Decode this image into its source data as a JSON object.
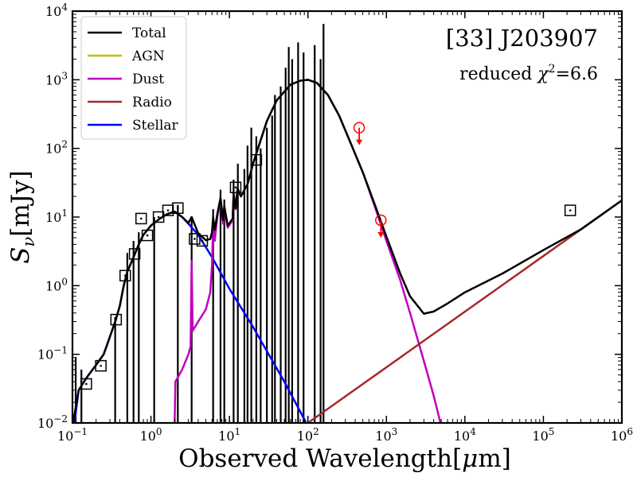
{
  "chart_data": {
    "type": "line",
    "x_scale": "log",
    "y_scale": "log",
    "xlim": [
      0.1,
      1000000
    ],
    "ylim": [
      0.01,
      10000
    ],
    "title": "[33] J203907",
    "annotation": "reduced χ²=6.6",
    "annotation_parts": {
      "prefix": "reduced ",
      "chi": "χ",
      "sup": "2",
      "suffix": "=6.6"
    },
    "xlabel": "Observed Wavelength[μm]",
    "xlabel_parts": {
      "main": "Observed Wavelength[",
      "mu": "μ",
      "unit": "m]"
    },
    "ylabel": "Sν[mJy]",
    "ylabel_parts": {
      "s": "S",
      "nu": "ν",
      "unit": "[mJy]"
    },
    "x_ticks": [
      {
        "value": 0.1,
        "base": "10",
        "exp": "−1"
      },
      {
        "value": 1,
        "base": "10",
        "exp": "0"
      },
      {
        "value": 10,
        "base": "10",
        "exp": "1"
      },
      {
        "value": 100,
        "base": "10",
        "exp": "2"
      },
      {
        "value": 1000,
        "base": "10",
        "exp": "3"
      },
      {
        "value": 10000,
        "base": "10",
        "exp": "4"
      },
      {
        "value": 100000,
        "base": "10",
        "exp": "5"
      },
      {
        "value": 1000000,
        "base": "10",
        "exp": "6"
      }
    ],
    "y_ticks": [
      {
        "value": 0.01,
        "base": "10",
        "exp": "−2"
      },
      {
        "value": 0.1,
        "base": "10",
        "exp": "−1"
      },
      {
        "value": 1,
        "base": "10",
        "exp": "0"
      },
      {
        "value": 10,
        "base": "10",
        "exp": "1"
      },
      {
        "value": 100,
        "base": "10",
        "exp": "2"
      },
      {
        "value": 1000,
        "base": "10",
        "exp": "3"
      },
      {
        "value": 10000,
        "base": "10",
        "exp": "4"
      }
    ],
    "legend": [
      {
        "name": "Total",
        "color": "#000000"
      },
      {
        "name": "AGN",
        "color": "#bfbf00"
      },
      {
        "name": "Dust",
        "color": "#bf00bf"
      },
      {
        "name": "Radio",
        "color": "#a52a2a"
      },
      {
        "name": "Stellar",
        "color": "#0000ff"
      }
    ],
    "series": [
      {
        "name": "Stellar",
        "color": "#0000ff",
        "points": [
          [
            0.1,
            0.006
          ],
          [
            0.12,
            0.03
          ],
          [
            0.15,
            0.045
          ],
          [
            0.2,
            0.07
          ],
          [
            0.25,
            0.1
          ],
          [
            0.3,
            0.18
          ],
          [
            0.35,
            0.3
          ],
          [
            0.4,
            0.5
          ],
          [
            0.45,
            1.0
          ],
          [
            0.5,
            1.6
          ],
          [
            0.6,
            2.6
          ],
          [
            0.7,
            4.0
          ],
          [
            0.8,
            5.5
          ],
          [
            1.0,
            7.5
          ],
          [
            1.3,
            9.5
          ],
          [
            1.6,
            11
          ],
          [
            2.0,
            12
          ],
          [
            2.5,
            10
          ],
          [
            3.0,
            8
          ],
          [
            4.0,
            5.5
          ],
          [
            6,
            2.6
          ],
          [
            10,
            0.9
          ],
          [
            20,
            0.25
          ],
          [
            50,
            0.04
          ],
          [
            100,
            0.009
          ]
        ]
      },
      {
        "name": "Dust",
        "color": "#bf00bf",
        "points": [
          [
            2.0,
            0.009
          ],
          [
            2.05,
            0.04
          ],
          [
            2.5,
            0.06
          ],
          [
            3.0,
            0.1
          ],
          [
            3.2,
            0.13
          ],
          [
            3.3,
            2.3
          ],
          [
            3.4,
            0.22
          ],
          [
            4,
            0.3
          ],
          [
            5,
            0.45
          ],
          [
            5.7,
            0.8
          ],
          [
            6.0,
            2.0
          ],
          [
            6.2,
            8
          ],
          [
            6.5,
            4.5
          ],
          [
            7.0,
            10
          ],
          [
            7.7,
            18
          ],
          [
            8.3,
            8
          ],
          [
            8.6,
            14
          ],
          [
            9.5,
            7
          ],
          [
            11,
            9
          ],
          [
            11.3,
            22
          ],
          [
            12,
            13
          ],
          [
            12.7,
            26
          ],
          [
            14,
            20
          ],
          [
            17,
            30
          ],
          [
            20,
            60
          ],
          [
            30,
            250
          ],
          [
            40,
            500
          ],
          [
            60,
            850
          ],
          [
            80,
            970
          ],
          [
            100,
            1000
          ],
          [
            130,
            900
          ],
          [
            180,
            600
          ],
          [
            250,
            300
          ],
          [
            350,
            120
          ],
          [
            500,
            45
          ],
          [
            700,
            15
          ],
          [
            1000,
            4.5
          ],
          [
            1500,
            1.2
          ],
          [
            2000,
            0.4
          ],
          [
            3000,
            0.08
          ],
          [
            4000,
            0.025
          ],
          [
            5000,
            0.009
          ]
        ]
      },
      {
        "name": "Radio",
        "color": "#a52a2a",
        "points": [
          [
            100,
            0.01
          ],
          [
            1000000,
            17.5
          ]
        ]
      },
      {
        "name": "Total",
        "color": "#000000",
        "points": [
          [
            0.1,
            0.009
          ],
          [
            0.12,
            0.03
          ],
          [
            0.15,
            0.045
          ],
          [
            0.2,
            0.07
          ],
          [
            0.25,
            0.1
          ],
          [
            0.3,
            0.18
          ],
          [
            0.35,
            0.3
          ],
          [
            0.4,
            0.5
          ],
          [
            0.45,
            1.0
          ],
          [
            0.5,
            1.6
          ],
          [
            0.6,
            2.6
          ],
          [
            0.7,
            4.0
          ],
          [
            0.8,
            5.5
          ],
          [
            1.0,
            7.5
          ],
          [
            1.3,
            9.5
          ],
          [
            1.6,
            11
          ],
          [
            2.0,
            12
          ],
          [
            2.5,
            10
          ],
          [
            3.0,
            8.2
          ],
          [
            3.3,
            10
          ],
          [
            4.0,
            5.8
          ],
          [
            5.0,
            4.6
          ],
          [
            5.7,
            4.8
          ],
          [
            6.0,
            6.0
          ],
          [
            6.2,
            10
          ],
          [
            6.5,
            6.5
          ],
          [
            7.0,
            11
          ],
          [
            7.7,
            19
          ],
          [
            8.3,
            9
          ],
          [
            8.6,
            14.5
          ],
          [
            9.5,
            7.5
          ],
          [
            11,
            9.5
          ],
          [
            11.3,
            22
          ],
          [
            12,
            13.5
          ],
          [
            12.7,
            26
          ],
          [
            14,
            20
          ],
          [
            17,
            30
          ],
          [
            20,
            60
          ],
          [
            30,
            250
          ],
          [
            40,
            500
          ],
          [
            60,
            850
          ],
          [
            80,
            970
          ],
          [
            100,
            1000
          ],
          [
            130,
            900
          ],
          [
            180,
            600
          ],
          [
            250,
            300
          ],
          [
            350,
            120
          ],
          [
            500,
            45
          ],
          [
            700,
            16
          ],
          [
            1000,
            5.2
          ],
          [
            1500,
            1.5
          ],
          [
            2000,
            0.7
          ],
          [
            3000,
            0.39
          ],
          [
            4000,
            0.42
          ],
          [
            6000,
            0.55
          ],
          [
            10000,
            0.8
          ],
          [
            30000,
            1.5
          ],
          [
            100000,
            3.3
          ],
          [
            300000,
            6.6
          ],
          [
            1000000,
            17.5
          ]
        ]
      }
    ],
    "emission_spikes": [
      [
        0.11,
        0.09
      ],
      [
        0.13,
        0.06
      ],
      [
        0.35,
        0.35
      ],
      [
        0.5,
        3.0
      ],
      [
        0.6,
        4.5
      ],
      [
        0.7,
        6.0
      ],
      [
        1.1,
        10
      ],
      [
        2.2,
        15
      ],
      [
        3.3,
        10
      ],
      [
        6.2,
        13
      ],
      [
        7.7,
        25
      ],
      [
        8.6,
        18
      ],
      [
        11.3,
        35
      ],
      [
        12.8,
        60
      ],
      [
        15.5,
        50
      ],
      [
        17,
        110
      ],
      [
        19,
        200
      ],
      [
        22,
        150
      ],
      [
        25,
        100
      ],
      [
        30,
        200
      ],
      [
        35,
        300
      ],
      [
        38,
        600
      ],
      [
        45,
        800
      ],
      [
        52,
        1500
      ],
      [
        57,
        3000
      ],
      [
        63,
        2000
      ],
      [
        75,
        3500
      ],
      [
        88,
        2500
      ],
      [
        122,
        3200
      ],
      [
        145,
        2000
      ],
      [
        158,
        6500
      ]
    ],
    "photometry": [
      [
        0.15,
        0.037
      ],
      [
        0.23,
        0.068
      ],
      [
        0.36,
        0.32
      ],
      [
        0.47,
        1.4
      ],
      [
        0.62,
        2.9
      ],
      [
        0.75,
        9.5
      ],
      [
        0.9,
        5.4
      ],
      [
        1.25,
        10
      ],
      [
        1.65,
        12.5
      ],
      [
        2.2,
        13.5
      ],
      [
        3.6,
        4.8
      ],
      [
        4.5,
        4.5
      ],
      [
        12,
        27
      ],
      [
        22,
        68
      ],
      [
        220000,
        12.5
      ]
    ],
    "upper_limits": [
      [
        450,
        200
      ],
      [
        850,
        9
      ]
    ]
  }
}
